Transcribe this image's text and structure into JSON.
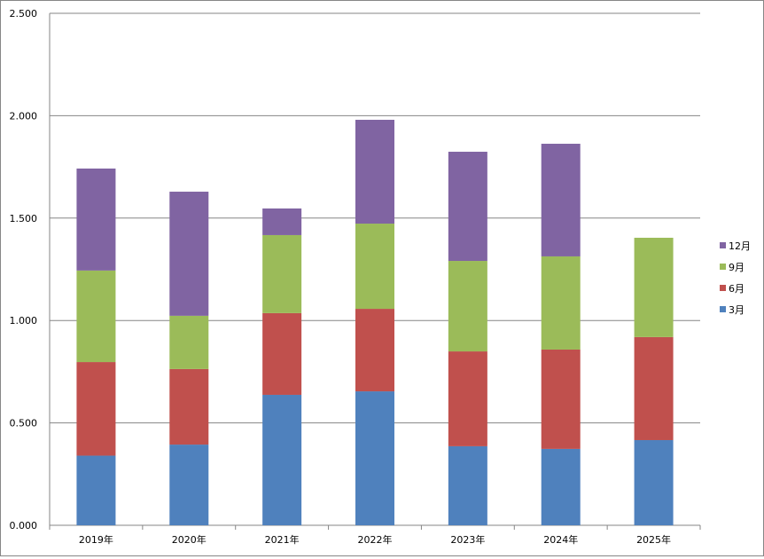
{
  "chart_data": {
    "type": "bar",
    "stacked": true,
    "title": "",
    "xlabel": "",
    "ylabel": "",
    "ylim": [
      0,
      2500
    ],
    "yticks": [
      0,
      500,
      1000,
      1500,
      2000,
      2500
    ],
    "ytick_labels": [
      "0.000",
      "0.500",
      "1.000",
      "1.500",
      "2.000",
      "2.500"
    ],
    "grid": true,
    "legend_position": "right",
    "categories": [
      "2019年",
      "2020年",
      "2021年",
      "2022年",
      "2023年",
      "2024年",
      "2025年"
    ],
    "series": [
      {
        "name": "3月",
        "color": "#4F81BD",
        "values": [
          340,
          394,
          637,
          654,
          386,
          373,
          416
        ]
      },
      {
        "name": "6月",
        "color": "#C0504D",
        "values": [
          457,
          369,
          399,
          403,
          463,
          485,
          503
        ]
      },
      {
        "name": "9月",
        "color": "#9BBB59",
        "values": [
          447,
          260,
          381,
          416,
          442,
          455,
          485
        ]
      },
      {
        "name": "12月",
        "color": "#8064A2",
        "values": [
          498,
          606,
          130,
          507,
          533,
          550,
          0
        ]
      }
    ]
  }
}
